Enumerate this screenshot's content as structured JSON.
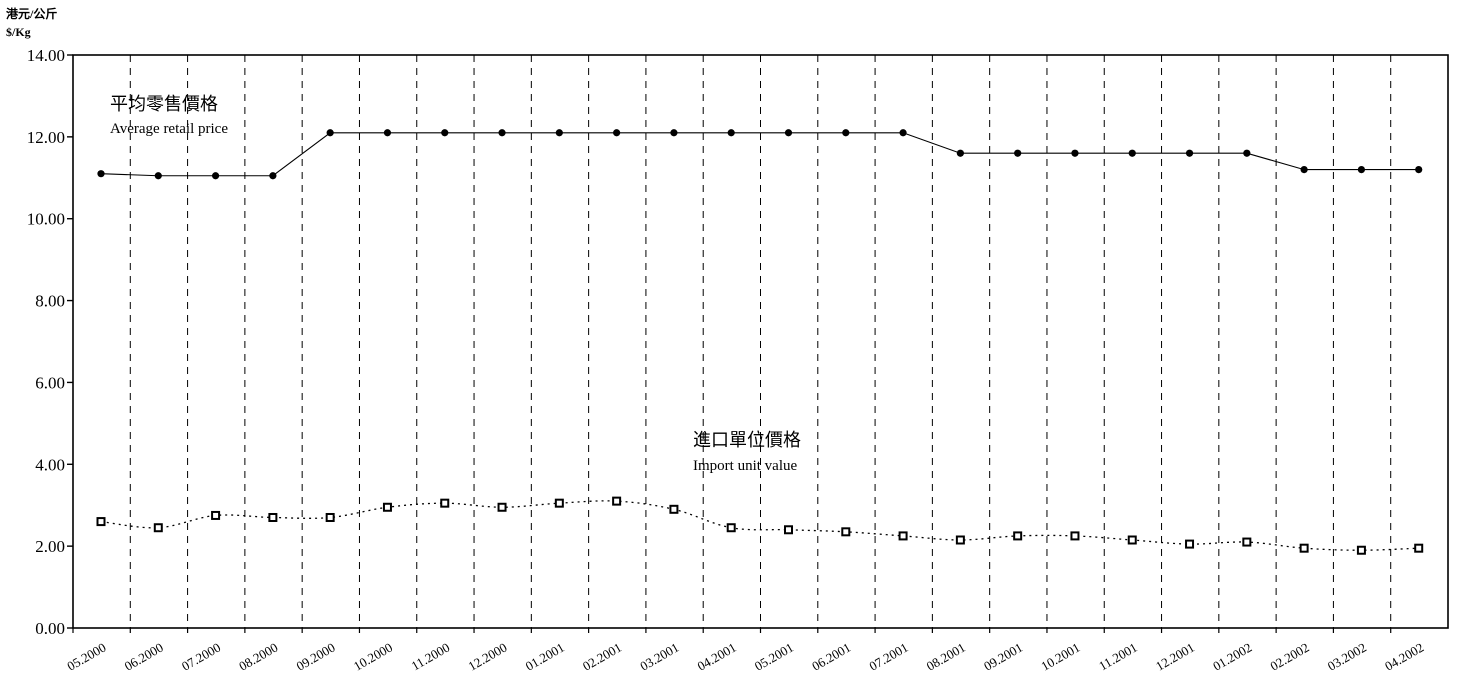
{
  "chart_data": {
    "type": "line",
    "unit_label_cn": "港元/公斤",
    "unit_label_en": "$/Kg",
    "ylim": [
      0,
      14
    ],
    "y_ticks": [
      "0.00",
      "2.00",
      "4.00",
      "6.00",
      "8.00",
      "10.00",
      "12.00",
      "14.00"
    ],
    "grid": "vertical dashed",
    "categories": [
      "05.2000",
      "06.2000",
      "07.2000",
      "08.2000",
      "09.2000",
      "10.2000",
      "11.2000",
      "12.2000",
      "01.2001",
      "02.2001",
      "03.2001",
      "04.2001",
      "05.2001",
      "06.2001",
      "07.2001",
      "08.2001",
      "09.2001",
      "10.2001",
      "11.2001",
      "12.2001",
      "01.2002",
      "02.2002",
      "03.2002",
      "04.2002"
    ],
    "series": [
      {
        "name_cn": "平均零售價格",
        "name_en": "Average retail price",
        "marker": "circle",
        "line": "solid",
        "values": [
          11.1,
          11.05,
          11.05,
          11.05,
          12.1,
          12.1,
          12.1,
          12.1,
          12.1,
          12.1,
          12.1,
          12.1,
          12.1,
          12.1,
          12.1,
          11.6,
          11.6,
          11.6,
          11.6,
          11.6,
          11.6,
          11.2,
          11.2,
          11.2
        ]
      },
      {
        "name_cn": "進口單位價格",
        "name_en": "Import unit value",
        "marker": "square",
        "line": "dotted",
        "values": [
          2.6,
          2.45,
          2.75,
          2.7,
          2.7,
          2.95,
          3.05,
          2.95,
          3.05,
          3.1,
          2.9,
          2.45,
          2.4,
          2.35,
          2.25,
          2.15,
          2.25,
          2.25,
          2.15,
          2.05,
          2.1,
          1.95,
          1.9,
          1.95
        ]
      }
    ]
  }
}
